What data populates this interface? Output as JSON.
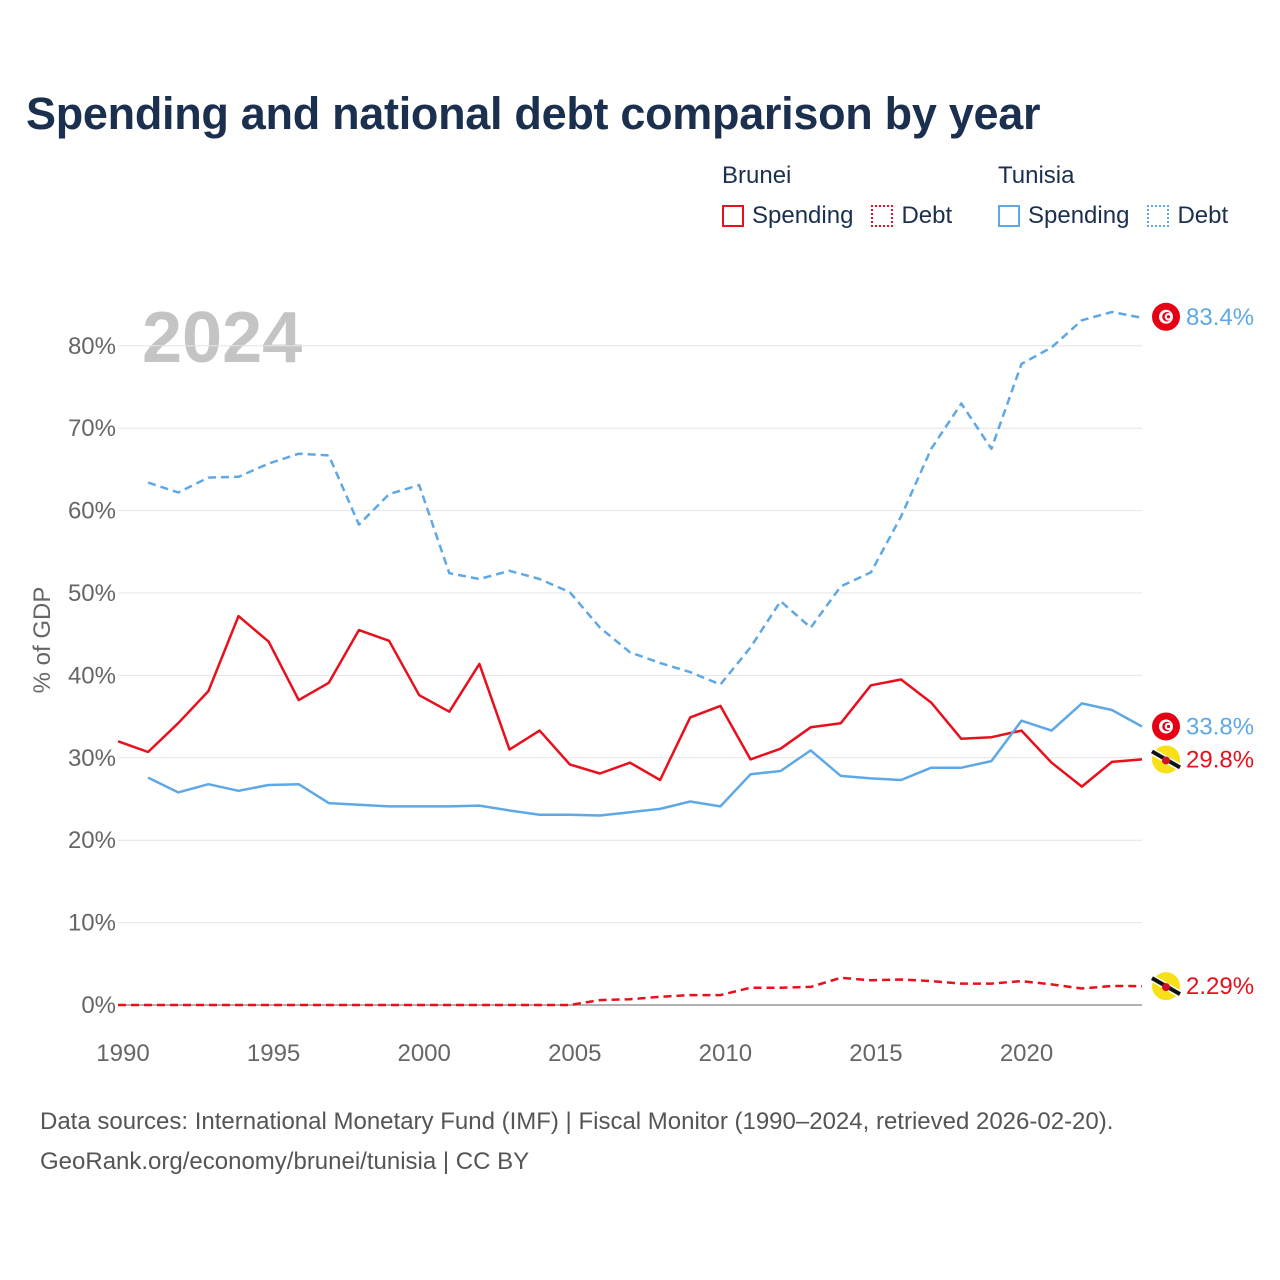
{
  "title": "Spending and national debt comparison by year",
  "legend": {
    "groups": [
      {
        "name": "Brunei",
        "color": "#e8101c",
        "items": [
          {
            "label": "Spending",
            "style": "solid"
          },
          {
            "label": "Debt",
            "style": "dotted"
          }
        ]
      },
      {
        "name": "Tunisia",
        "color": "#5fa8e6",
        "items": [
          {
            "label": "Spending",
            "style": "solid"
          },
          {
            "label": "Debt",
            "style": "dotted"
          }
        ]
      }
    ]
  },
  "watermark_year": "2024",
  "footer": {
    "line1": "Data sources: International Monetary Fund (IMF) | Fiscal Monitor (1990–2024, retrieved 2026-02-20).",
    "line2": "GeoRank.org/economy/brunei/tunisia | CC BY"
  },
  "chart_data": {
    "type": "line",
    "title": "Spending and national debt comparison by year",
    "xlabel": "",
    "ylabel": "% of GDP",
    "xlim": [
      1990,
      2024
    ],
    "ylim": [
      0,
      85
    ],
    "xticks": [
      1990,
      1995,
      2000,
      2005,
      2010,
      2015,
      2020
    ],
    "xtick_labels": [
      "1990",
      "1995",
      "2000",
      "2005",
      "2010",
      "2015",
      "2020"
    ],
    "yticks": [
      0,
      10,
      20,
      30,
      40,
      50,
      60,
      70,
      80
    ],
    "ytick_labels": [
      "0%",
      "10%",
      "20%",
      "30%",
      "40%",
      "50%",
      "60%",
      "70%",
      "80%"
    ],
    "grid": true,
    "series": [
      {
        "name": "Tunisia Debt",
        "country": "Tunisia",
        "metric": "Debt",
        "color": "#5fa8e6",
        "dash": "dashed",
        "flag": "tunisia",
        "end_label": "83.4%",
        "x": [
          1991,
          1992,
          1993,
          1994,
          1995,
          1996,
          1997,
          1998,
          1999,
          2000,
          2001,
          2002,
          2003,
          2004,
          2005,
          2006,
          2007,
          2008,
          2009,
          2010,
          2011,
          2012,
          2013,
          2014,
          2015,
          2016,
          2017,
          2018,
          2019,
          2020,
          2021,
          2022,
          2023,
          2024
        ],
        "values": [
          63.4,
          62.2,
          64.0,
          64.1,
          65.7,
          66.9,
          66.7,
          58.3,
          62.0,
          63.1,
          52.4,
          51.7,
          52.7,
          51.7,
          50.1,
          45.8,
          42.8,
          41.5,
          40.4,
          38.9,
          43.4,
          49.0,
          45.8,
          50.8,
          52.5,
          59.3,
          67.5,
          73.0,
          67.5,
          77.8,
          79.8,
          83.1,
          84.1,
          83.4
        ]
      },
      {
        "name": "Brunei Spending",
        "country": "Brunei",
        "metric": "Spending",
        "color": "#e8101c",
        "dash": "solid",
        "flag": "brunei",
        "end_label": "29.8%",
        "x": [
          1990,
          1991,
          1992,
          1993,
          1994,
          1995,
          1996,
          1997,
          1998,
          1999,
          2000,
          2001,
          2002,
          2003,
          2004,
          2005,
          2006,
          2007,
          2008,
          2009,
          2010,
          2011,
          2012,
          2013,
          2014,
          2015,
          2016,
          2017,
          2018,
          2019,
          2020,
          2021,
          2022,
          2023,
          2024
        ],
        "values": [
          32.0,
          30.7,
          34.2,
          38.1,
          47.2,
          44.1,
          37.0,
          39.1,
          45.5,
          44.2,
          37.6,
          35.6,
          41.4,
          31.0,
          33.3,
          29.2,
          28.1,
          29.4,
          27.3,
          34.9,
          36.3,
          29.8,
          31.1,
          33.7,
          34.2,
          38.8,
          39.5,
          36.7,
          32.3,
          32.5,
          33.3,
          29.4,
          26.5,
          29.5,
          29.8
        ]
      },
      {
        "name": "Tunisia Spending",
        "country": "Tunisia",
        "metric": "Spending",
        "color": "#5fa8e6",
        "dash": "solid",
        "flag": "tunisia",
        "end_label": "33.8%",
        "x": [
          1991,
          1992,
          1993,
          1994,
          1995,
          1996,
          1997,
          1998,
          1999,
          2000,
          2001,
          2002,
          2003,
          2004,
          2005,
          2006,
          2007,
          2008,
          2009,
          2010,
          2011,
          2012,
          2013,
          2014,
          2015,
          2016,
          2017,
          2018,
          2019,
          2020,
          2021,
          2022,
          2023,
          2024
        ],
        "values": [
          27.6,
          25.8,
          26.8,
          26.0,
          26.7,
          26.8,
          24.5,
          24.3,
          24.1,
          24.1,
          24.1,
          24.2,
          23.6,
          23.1,
          23.1,
          23.0,
          23.4,
          23.8,
          24.7,
          24.1,
          28.0,
          28.4,
          30.9,
          27.8,
          27.5,
          27.3,
          28.8,
          28.8,
          29.6,
          34.5,
          33.3,
          36.6,
          35.8,
          33.8
        ]
      },
      {
        "name": "Brunei Debt",
        "country": "Brunei",
        "metric": "Debt",
        "color": "#e8101c",
        "dash": "dashed",
        "flag": "brunei",
        "end_label": "2.29%",
        "x": [
          1990,
          1991,
          1992,
          1993,
          1994,
          1995,
          1996,
          1997,
          1998,
          1999,
          2000,
          2001,
          2002,
          2003,
          2004,
          2005,
          2006,
          2007,
          2008,
          2009,
          2010,
          2011,
          2012,
          2013,
          2014,
          2015,
          2016,
          2017,
          2018,
          2019,
          2020,
          2021,
          2022,
          2023,
          2024
        ],
        "values": [
          0,
          0,
          0,
          0,
          0,
          0,
          0,
          0,
          0,
          0,
          0,
          0,
          0,
          0,
          0,
          0,
          0.6,
          0.7,
          1.0,
          1.2,
          1.2,
          2.1,
          2.1,
          2.2,
          3.3,
          3.0,
          3.1,
          2.9,
          2.6,
          2.6,
          2.9,
          2.5,
          2.0,
          2.3,
          2.29
        ]
      }
    ]
  }
}
